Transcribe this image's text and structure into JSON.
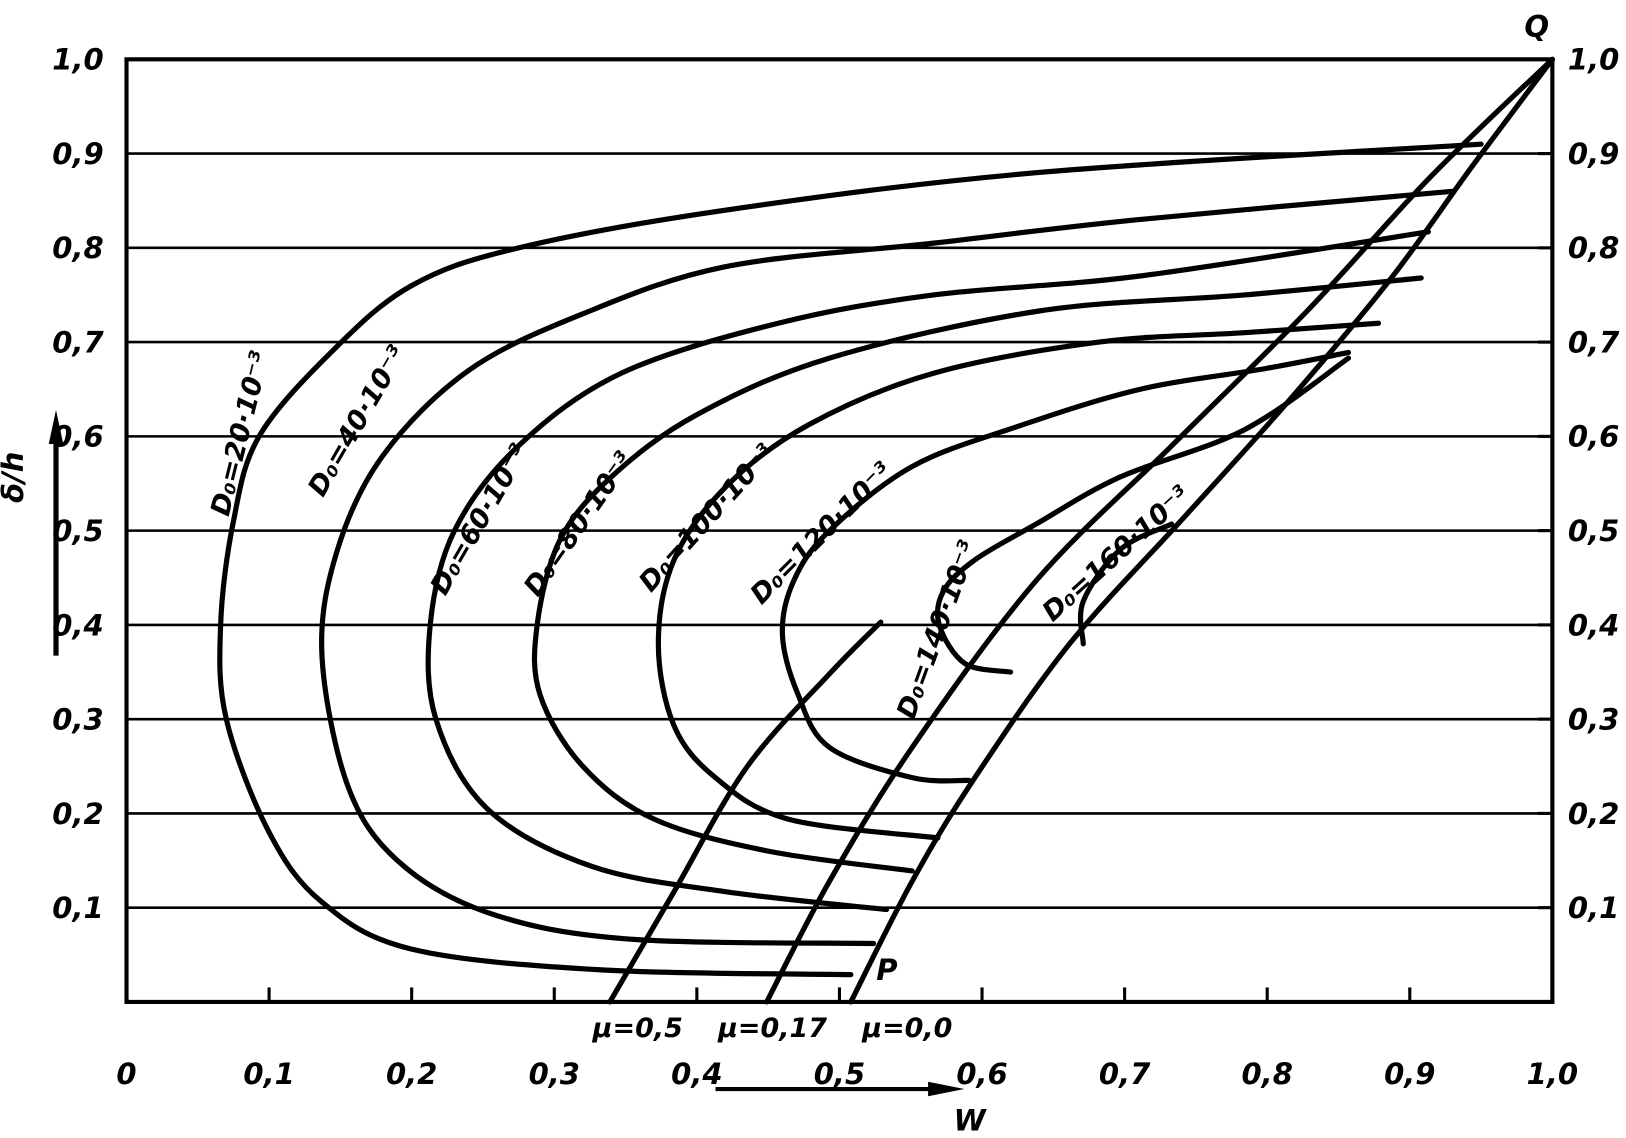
{
  "chart_data": {
    "type": "line",
    "title": "",
    "xlabel": "W",
    "ylabel": "δ/h",
    "xlim": [
      0,
      1.0
    ],
    "ylim": [
      0,
      1.0
    ],
    "grid": "horizontal",
    "x_ticks": [
      "0",
      "0,1",
      "0,2",
      "0,3",
      "0,4",
      "0,5",
      "0,6",
      "0,7",
      "0,8",
      "0,9",
      "1,0"
    ],
    "y_ticks_left": [
      "0,1",
      "0,2",
      "0,3",
      "0,4",
      "0,5",
      "0,6",
      "0,7",
      "0,8",
      "0,9",
      "1,0"
    ],
    "y_ticks_right": [
      "0,1",
      "0,2",
      "0,3",
      "0,4",
      "0,5",
      "0,6",
      "0,7",
      "0,8",
      "0,9",
      "1,0"
    ],
    "point_labels": {
      "Q": "Q",
      "P": "P"
    },
    "series": [
      {
        "name": "D₀=20·10⁻³",
        "points": [
          [
            0.508,
            0.029
          ],
          [
            0.333,
            0.034
          ],
          [
            0.2,
            0.056
          ],
          [
            0.137,
            0.106
          ],
          [
            0.1,
            0.18
          ],
          [
            0.07,
            0.3
          ],
          [
            0.066,
            0.4
          ],
          [
            0.075,
            0.51
          ],
          [
            0.093,
            0.6
          ],
          [
            0.144,
            0.69
          ],
          [
            0.2,
            0.76
          ],
          [
            0.275,
            0.8
          ],
          [
            0.42,
            0.84
          ],
          [
            0.64,
            0.88
          ],
          [
            0.95,
            0.91
          ]
        ]
      },
      {
        "name": "D₀=40·10⁻³",
        "points": [
          [
            0.524,
            0.062
          ],
          [
            0.35,
            0.067
          ],
          [
            0.253,
            0.095
          ],
          [
            0.19,
            0.15
          ],
          [
            0.155,
            0.23
          ],
          [
            0.137,
            0.37
          ],
          [
            0.148,
            0.48
          ],
          [
            0.18,
            0.58
          ],
          [
            0.24,
            0.67
          ],
          [
            0.32,
            0.73
          ],
          [
            0.42,
            0.78
          ],
          [
            0.566,
            0.805
          ],
          [
            0.71,
            0.83
          ],
          [
            0.93,
            0.86
          ]
        ]
      },
      {
        "name": "D₀=60·10⁻³",
        "points": [
          [
            0.533,
            0.098
          ],
          [
            0.42,
            0.117
          ],
          [
            0.326,
            0.144
          ],
          [
            0.253,
            0.205
          ],
          [
            0.217,
            0.3
          ],
          [
            0.213,
            0.4
          ],
          [
            0.23,
            0.5
          ],
          [
            0.275,
            0.59
          ],
          [
            0.347,
            0.667
          ],
          [
            0.457,
            0.72
          ],
          [
            0.566,
            0.75
          ],
          [
            0.71,
            0.77
          ],
          [
            0.913,
            0.817
          ]
        ]
      },
      {
        "name": "D₀=80·10⁻³",
        "points": [
          [
            0.551,
            0.139
          ],
          [
            0.45,
            0.16
          ],
          [
            0.37,
            0.194
          ],
          [
            0.32,
            0.25
          ],
          [
            0.29,
            0.326
          ],
          [
            0.288,
            0.4
          ],
          [
            0.304,
            0.49
          ],
          [
            0.34,
            0.557
          ],
          [
            0.4,
            0.623
          ],
          [
            0.493,
            0.683
          ],
          [
            0.64,
            0.733
          ],
          [
            0.784,
            0.75
          ],
          [
            0.908,
            0.768
          ]
        ]
      },
      {
        "name": "D₀=100·10⁻³",
        "points": [
          [
            0.569,
            0.174
          ],
          [
            0.464,
            0.194
          ],
          [
            0.413,
            0.238
          ],
          [
            0.384,
            0.293
          ],
          [
            0.373,
            0.38
          ],
          [
            0.384,
            0.469
          ],
          [
            0.42,
            0.546
          ],
          [
            0.478,
            0.612
          ],
          [
            0.566,
            0.667
          ],
          [
            0.682,
            0.7
          ],
          [
            0.784,
            0.71
          ],
          [
            0.878,
            0.72
          ]
        ]
      },
      {
        "name": "D₀=120·10⁻³",
        "points": [
          [
            0.591,
            0.235
          ],
          [
            0.551,
            0.238
          ],
          [
            0.493,
            0.27
          ],
          [
            0.471,
            0.326
          ],
          [
            0.46,
            0.39
          ],
          [
            0.468,
            0.447
          ],
          [
            0.493,
            0.5
          ],
          [
            0.551,
            0.568
          ],
          [
            0.624,
            0.61
          ],
          [
            0.711,
            0.65
          ],
          [
            0.799,
            0.672
          ],
          [
            0.857,
            0.689
          ]
        ]
      },
      {
        "name": "D₀=140·10⁻³",
        "points": [
          [
            0.62,
            0.35
          ],
          [
            0.588,
            0.359
          ],
          [
            0.57,
            0.4
          ],
          [
            0.573,
            0.436
          ],
          [
            0.595,
            0.469
          ],
          [
            0.638,
            0.507
          ],
          [
            0.697,
            0.557
          ],
          [
            0.784,
            0.607
          ],
          [
            0.857,
            0.683
          ]
        ]
      },
      {
        "name": "D₀=160·10⁻³",
        "points": [
          [
            0.671,
            0.38
          ],
          [
            0.671,
            0.425
          ],
          [
            0.697,
            0.48
          ],
          [
            0.733,
            0.507
          ]
        ]
      },
      {
        "name": "μ=0,0",
        "points": [
          [
            0.508,
            0
          ],
          [
            0.551,
            0.128
          ],
          [
            0.595,
            0.238
          ],
          [
            0.662,
            0.381
          ],
          [
            0.741,
            0.513
          ],
          [
            0.813,
            0.634
          ],
          [
            0.886,
            0.766
          ],
          [
            0.944,
            0.887
          ],
          [
            1.0,
            1.0
          ]
        ]
      },
      {
        "name": "μ=0,17",
        "points": [
          [
            0.449,
            0
          ],
          [
            0.493,
            0.128
          ],
          [
            0.551,
            0.27
          ],
          [
            0.638,
            0.447
          ],
          [
            0.733,
            0.59
          ],
          [
            0.828,
            0.733
          ],
          [
            0.915,
            0.876
          ],
          [
            1.0,
            1.0
          ]
        ]
      },
      {
        "name": "μ=0,5",
        "points": [
          [
            0.339,
            0
          ],
          [
            0.384,
            0.117
          ],
          [
            0.435,
            0.249
          ],
          [
            0.493,
            0.348
          ],
          [
            0.529,
            0.403
          ]
        ]
      }
    ]
  }
}
